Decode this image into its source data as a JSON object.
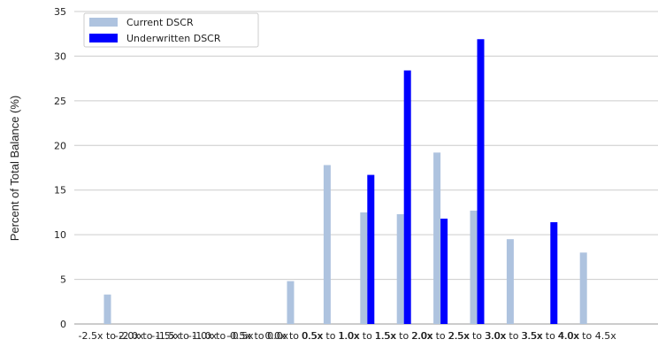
{
  "chart_data": {
    "type": "bar",
    "title": "",
    "xlabel": "",
    "ylabel": "Percent of Total Balance (%)",
    "ylim": [
      0,
      35
    ],
    "yticks": [
      0,
      5,
      10,
      15,
      20,
      25,
      30,
      35
    ],
    "grid": "horizontal",
    "legend_position": "top-left",
    "categories": [
      "-2.5x to -2.0x",
      "-2.0x to -1.5x",
      "-1.5x to -1.0x",
      "-1.0x to -0.5x",
      "-0.5x to 0.0x",
      "0.0x to 0.5x",
      "0.5x to 1.0x",
      "1.0x to 1.5x",
      "1.5x to 2.0x",
      "2.0x to 2.5x",
      "2.5x to 3.0x",
      "3.0x to 3.5x",
      "3.5x to 4.0x",
      "4.0x to 4.5x"
    ],
    "series": [
      {
        "name": "Current DSCR",
        "color": "#aec3df",
        "values": [
          3.3,
          0,
          0,
          0,
          0,
          4.8,
          17.8,
          12.5,
          12.3,
          19.2,
          12.7,
          9.5,
          0,
          8.0
        ]
      },
      {
        "name": "Underwritten DSCR",
        "color": "#0000ff",
        "values": [
          0,
          0,
          0,
          0,
          0,
          0,
          0,
          16.7,
          28.4,
          11.8,
          31.9,
          0,
          11.4,
          0
        ]
      }
    ]
  }
}
